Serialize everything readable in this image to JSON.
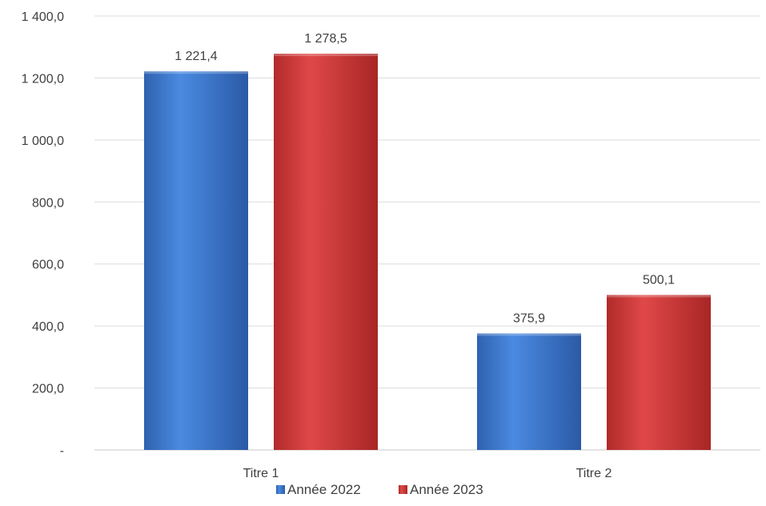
{
  "chart_data": {
    "type": "bar",
    "title": "",
    "xlabel": "",
    "ylabel": "",
    "categories": [
      "Titre 1",
      "Titre 2"
    ],
    "series": [
      {
        "name": "Année 2022",
        "values": [
          1221.4,
          375.9
        ],
        "value_labels": [
          "1 221,4",
          "375,9"
        ],
        "color": "#3a7bd5"
      },
      {
        "name": "Année 2023",
        "values": [
          1278.5,
          500.1
        ],
        "value_labels": [
          "1 278,5",
          "500,1"
        ],
        "color": "#d23a3a"
      }
    ],
    "ylim": [
      0,
      1400
    ],
    "yticks": [
      0,
      200,
      400,
      600,
      800,
      1000,
      1200,
      1400
    ],
    "ytick_labels": [
      "-",
      "200,0",
      "400,0",
      "600,0",
      "800,0",
      "1 000,0",
      "1 200,0",
      "1 400,0"
    ],
    "grid": true,
    "legend_position": "bottom"
  }
}
